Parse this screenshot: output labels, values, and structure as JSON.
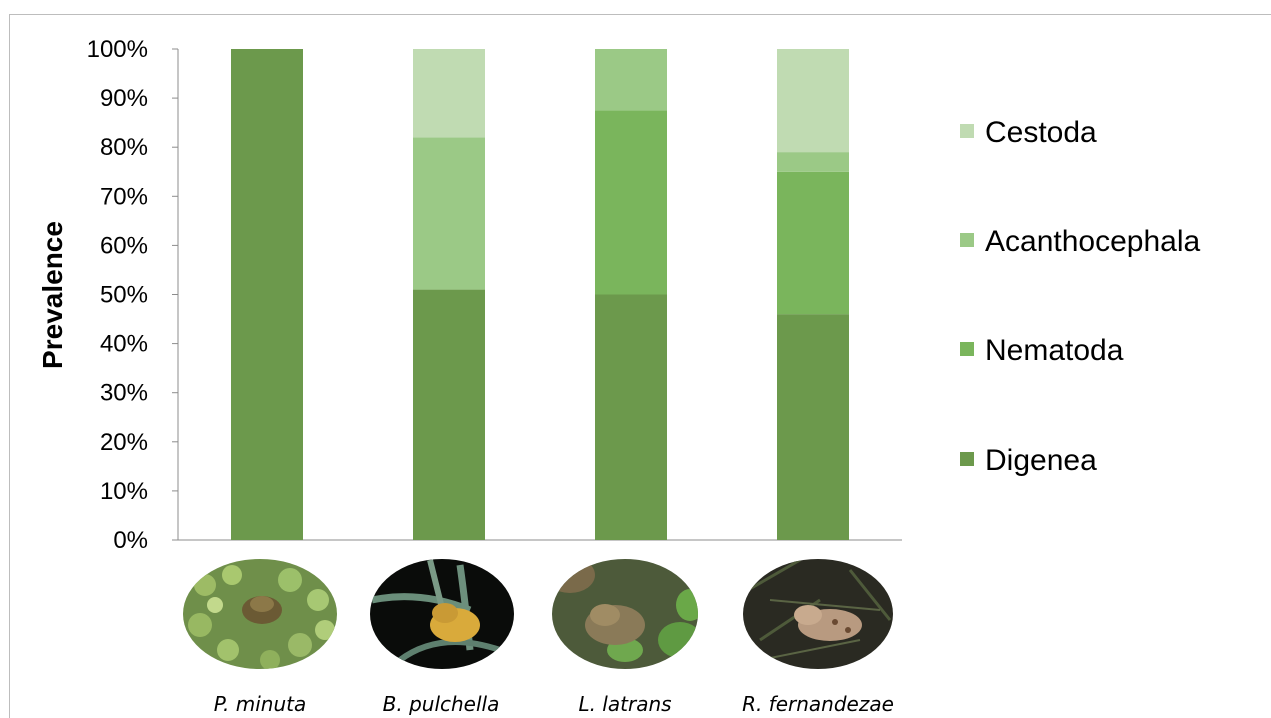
{
  "chart_data": {
    "type": "bar",
    "stacked": true,
    "categories": [
      "P. minuta",
      "B. pulchella",
      "L. latrans",
      "R. fernandezae"
    ],
    "series": [
      {
        "name": "Digenea",
        "color": "#6c994c",
        "values": [
          100,
          51,
          50,
          46
        ]
      },
      {
        "name": "Nematoda",
        "color": "#7ab55c",
        "values": [
          0,
          0,
          37.5,
          29
        ]
      },
      {
        "name": "Acanthocephala",
        "color": "#9bc986",
        "values": [
          0,
          31,
          12.5,
          4
        ]
      },
      {
        "name": "Cestoda",
        "color": "#c0dbb2",
        "values": [
          0,
          18,
          0,
          21
        ]
      }
    ],
    "yticks": [
      "0%",
      "10%",
      "20%",
      "30%",
      "40%",
      "50%",
      "60%",
      "70%",
      "80%",
      "90%",
      "100%"
    ],
    "ylabel": "Prevalence",
    "ylim": [
      0,
      100
    ],
    "legend_position": "right",
    "legend_order": [
      "Cestoda",
      "Acanthocephala",
      "Nematoda",
      "Digenea"
    ],
    "grid": false,
    "category_images": [
      "frog-on-duckweed",
      "frog-on-leaves-night",
      "frog-among-plants",
      "frog-on-ground"
    ]
  }
}
